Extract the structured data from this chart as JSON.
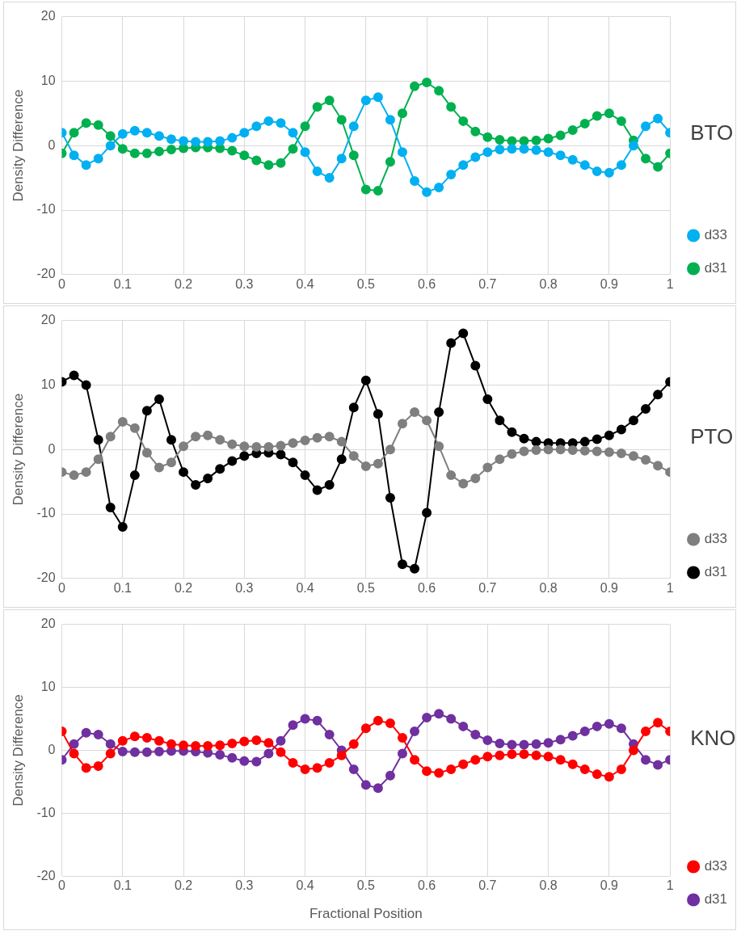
{
  "chart_data": [
    {
      "type": "line",
      "ylabel": "Density Difference",
      "annotations": [
        "BTO"
      ],
      "legend": "right",
      "grid": true,
      "marker": "circle",
      "xlim": [
        0,
        1
      ],
      "xticks": [
        0,
        0.1,
        0.2,
        0.3,
        0.4,
        0.5,
        0.6,
        0.7,
        0.8,
        0.9,
        1
      ],
      "ylim": [
        -20,
        20
      ],
      "yticks": [
        -20,
        -10,
        0,
        10,
        20
      ],
      "x": [
        0,
        0.02,
        0.04,
        0.06,
        0.08,
        0.1,
        0.12,
        0.14,
        0.16,
        0.18,
        0.2,
        0.22,
        0.24,
        0.26,
        0.28,
        0.3,
        0.32,
        0.34,
        0.36,
        0.38,
        0.4,
        0.42,
        0.44,
        0.46,
        0.48,
        0.5,
        0.52,
        0.54,
        0.56,
        0.58,
        0.6,
        0.62,
        0.64,
        0.66,
        0.68,
        0.7,
        0.72,
        0.74,
        0.76,
        0.78,
        0.8,
        0.82,
        0.84,
        0.86,
        0.88,
        0.9,
        0.92,
        0.94,
        0.96,
        0.98,
        1
      ],
      "series": [
        {
          "name": "d33",
          "color": "#00b0f0",
          "values": [
            2,
            -1.5,
            -3,
            -2,
            0,
            1.8,
            2.3,
            2,
            1.5,
            1,
            0.7,
            0.6,
            0.6,
            0.7,
            1.2,
            2,
            3,
            3.8,
            3.5,
            2,
            -1,
            -4,
            -5,
            -2,
            3,
            7,
            7.5,
            4,
            -1,
            -5.5,
            -7.2,
            -6.5,
            -4.5,
            -3,
            -1.8,
            -1,
            -0.6,
            -0.5,
            -0.5,
            -0.7,
            -1,
            -1.5,
            -2.2,
            -3,
            -4,
            -4.2,
            -3,
            0,
            3,
            4.2,
            2
          ]
        },
        {
          "name": "d31",
          "color": "#00b050",
          "values": [
            -1.2,
            2,
            3.5,
            3.2,
            1.5,
            -0.5,
            -1.2,
            -1.2,
            -0.9,
            -0.6,
            -0.4,
            -0.3,
            -0.3,
            -0.4,
            -0.8,
            -1.5,
            -2.3,
            -3,
            -2.7,
            -0.5,
            3,
            6,
            7,
            4,
            -1.5,
            -6.8,
            -7,
            -2.5,
            5,
            9.2,
            9.8,
            8.5,
            6,
            3.8,
            2.2,
            1.3,
            0.9,
            0.7,
            0.7,
            0.8,
            1.1,
            1.6,
            2.4,
            3.4,
            4.6,
            5,
            3.8,
            0.8,
            -2,
            -3.3,
            -1.2
          ]
        }
      ]
    },
    {
      "type": "line",
      "ylabel": "Density Difference",
      "annotations": [
        "PTO"
      ],
      "legend": "right",
      "grid": true,
      "marker": "circle",
      "xlim": [
        0,
        1
      ],
      "xticks": [
        0,
        0.1,
        0.2,
        0.3,
        0.4,
        0.5,
        0.6,
        0.7,
        0.8,
        0.9,
        1
      ],
      "ylim": [
        -20,
        20
      ],
      "yticks": [
        -20,
        -10,
        0,
        10,
        20
      ],
      "x": [
        0,
        0.02,
        0.04,
        0.06,
        0.08,
        0.1,
        0.12,
        0.14,
        0.16,
        0.18,
        0.2,
        0.22,
        0.24,
        0.26,
        0.28,
        0.3,
        0.32,
        0.34,
        0.36,
        0.38,
        0.4,
        0.42,
        0.44,
        0.46,
        0.48,
        0.5,
        0.52,
        0.54,
        0.56,
        0.58,
        0.6,
        0.62,
        0.64,
        0.66,
        0.68,
        0.7,
        0.72,
        0.74,
        0.76,
        0.78,
        0.8,
        0.82,
        0.84,
        0.86,
        0.88,
        0.9,
        0.92,
        0.94,
        0.96,
        0.98,
        1
      ],
      "series": [
        {
          "name": "d33",
          "color": "#7f7f7f",
          "values": [
            -3.5,
            -4,
            -3.5,
            -1.5,
            2,
            4.3,
            3.3,
            -0.5,
            -2.8,
            -2,
            0.5,
            2,
            2.2,
            1.5,
            0.8,
            0.5,
            0.4,
            0.4,
            0.6,
            1,
            1.4,
            1.8,
            2,
            1.2,
            -1,
            -2.6,
            -2.2,
            0,
            4,
            5.8,
            4.5,
            0.5,
            -4,
            -5.3,
            -4.5,
            -2.8,
            -1.5,
            -0.7,
            -0.3,
            -0.1,
            0,
            0,
            -0.1,
            -0.2,
            -0.3,
            -0.4,
            -0.6,
            -1,
            -1.6,
            -2.5,
            -3.5
          ]
        },
        {
          "name": "d31",
          "color": "#000000",
          "values": [
            10.5,
            11.5,
            10,
            1.5,
            -9,
            -12,
            -4,
            6,
            7.8,
            1.5,
            -3.5,
            -5.5,
            -4.5,
            -3,
            -1.8,
            -1,
            -0.6,
            -0.5,
            -0.8,
            -2,
            -4,
            -6.3,
            -5.5,
            -1.5,
            6.5,
            10.7,
            5.5,
            -7.5,
            -17.8,
            -18.5,
            -9.8,
            5.8,
            16.5,
            18,
            13,
            7.8,
            4.5,
            2.7,
            1.7,
            1.2,
            1,
            1,
            1,
            1.2,
            1.6,
            2.2,
            3.1,
            4.5,
            6.3,
            8.5,
            10.5
          ]
        }
      ]
    },
    {
      "type": "line",
      "ylabel": "Density Difference",
      "xlabel": "Fractional Position",
      "annotations": [
        "KNO"
      ],
      "legend": "right",
      "grid": true,
      "marker": "circle",
      "xlim": [
        0,
        1
      ],
      "xticks": [
        0,
        0.1,
        0.2,
        0.3,
        0.4,
        0.5,
        0.6,
        0.7,
        0.8,
        0.9,
        1
      ],
      "ylim": [
        -20,
        20
      ],
      "yticks": [
        -20,
        -10,
        0,
        10,
        20
      ],
      "x": [
        0,
        0.02,
        0.04,
        0.06,
        0.08,
        0.1,
        0.12,
        0.14,
        0.16,
        0.18,
        0.2,
        0.22,
        0.24,
        0.26,
        0.28,
        0.3,
        0.32,
        0.34,
        0.36,
        0.38,
        0.4,
        0.42,
        0.44,
        0.46,
        0.48,
        0.5,
        0.52,
        0.54,
        0.56,
        0.58,
        0.6,
        0.62,
        0.64,
        0.66,
        0.68,
        0.7,
        0.72,
        0.74,
        0.76,
        0.78,
        0.8,
        0.82,
        0.84,
        0.86,
        0.88,
        0.9,
        0.92,
        0.94,
        0.96,
        0.98,
        1
      ],
      "series": [
        {
          "name": "d33",
          "color": "#ff0000",
          "values": [
            3,
            -0.5,
            -2.8,
            -2.5,
            -0.5,
            1.5,
            2.2,
            2,
            1.5,
            1,
            0.8,
            0.7,
            0.7,
            0.8,
            1.1,
            1.4,
            1.6,
            1.2,
            -0.3,
            -2,
            -3,
            -2.8,
            -2,
            -0.8,
            1,
            3.5,
            4.7,
            4.3,
            2,
            -1.5,
            -3.3,
            -3.6,
            -3,
            -2.2,
            -1.5,
            -1,
            -0.8,
            -0.6,
            -0.6,
            -0.8,
            -1,
            -1.5,
            -2.2,
            -3,
            -3.8,
            -4.2,
            -3,
            0,
            3,
            4.4,
            3
          ]
        },
        {
          "name": "d31",
          "color": "#7030a0",
          "values": [
            -1.5,
            1,
            2.8,
            2.5,
            1,
            -0.2,
            -0.3,
            -0.3,
            -0.2,
            -0.1,
            -0.1,
            -0.2,
            -0.4,
            -0.7,
            -1.2,
            -1.7,
            -1.8,
            -0.5,
            1.5,
            4,
            5,
            4.7,
            2.5,
            0,
            -3,
            -5.5,
            -6,
            -4,
            -0.5,
            3,
            5.2,
            5.8,
            5,
            3.8,
            2.5,
            1.6,
            1.1,
            0.9,
            0.9,
            1,
            1.2,
            1.7,
            2.3,
            3,
            3.8,
            4.2,
            3.5,
            1,
            -1.5,
            -2.3,
            -1.5
          ]
        }
      ]
    }
  ]
}
